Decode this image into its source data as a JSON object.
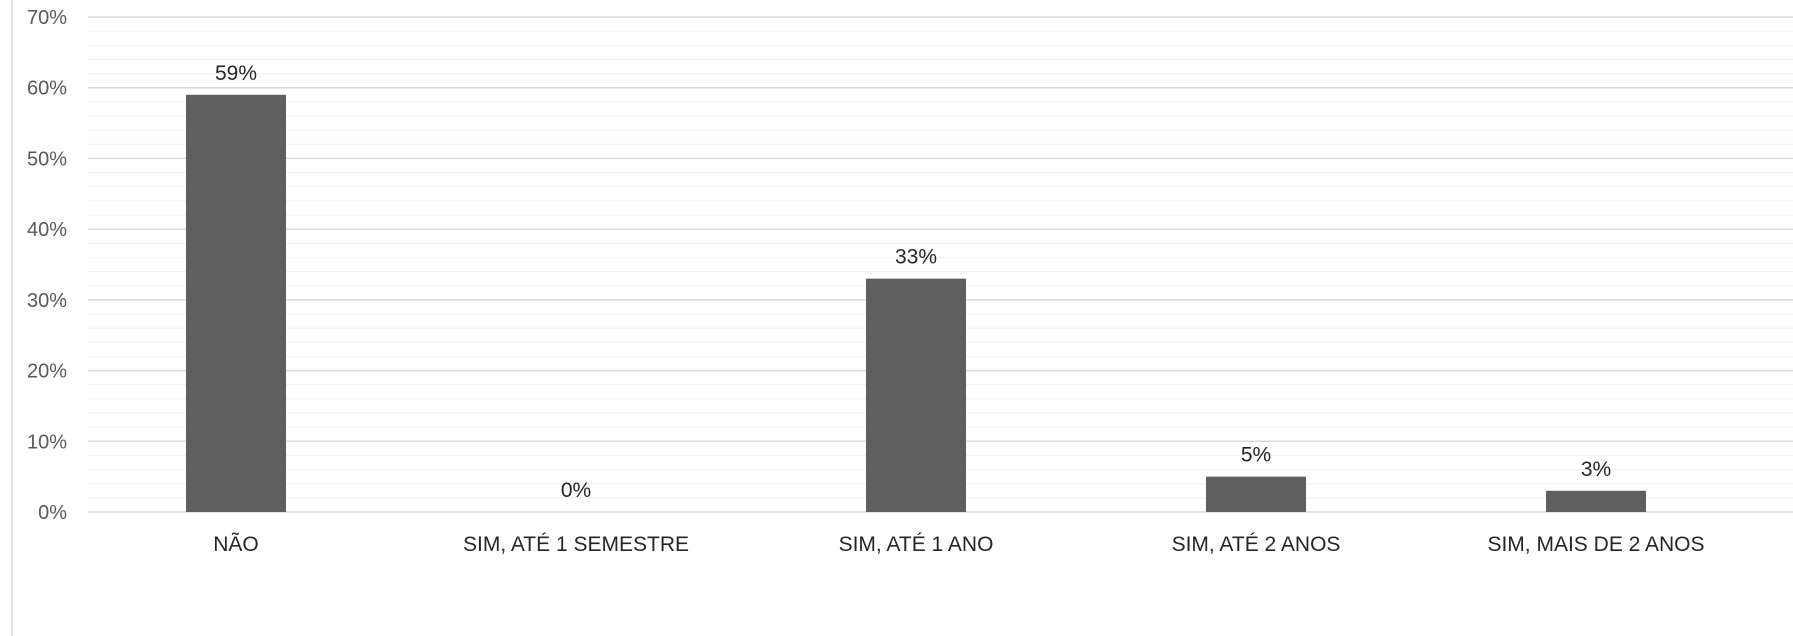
{
  "chart_data": {
    "type": "bar",
    "categories": [
      "NÃO",
      "SIM, ATÉ 1 SEMESTRE",
      "SIM, ATÉ 1 ANO",
      "SIM, ATÉ 2 ANOS",
      "SIM, MAIS DE 2 ANOS"
    ],
    "values": [
      59,
      0,
      33,
      5,
      3
    ],
    "data_labels": [
      "59%",
      "0%",
      "33%",
      "5%",
      "3%"
    ],
    "y_ticks": [
      0,
      10,
      20,
      30,
      40,
      50,
      60,
      70
    ],
    "y_tick_labels": [
      "0%",
      "10%",
      "20%",
      "30%",
      "40%",
      "50%",
      "60%",
      "70%"
    ],
    "ylim": [
      0,
      70
    ],
    "title": "",
    "xlabel": "",
    "ylabel": "",
    "grid": true,
    "legend": "none",
    "colors": {
      "bar": "#5f5f5f",
      "major_grid": "#d9d9d9",
      "minor_grid": "#efefef",
      "axis_text": "#595959",
      "label_text": "#262626"
    }
  }
}
